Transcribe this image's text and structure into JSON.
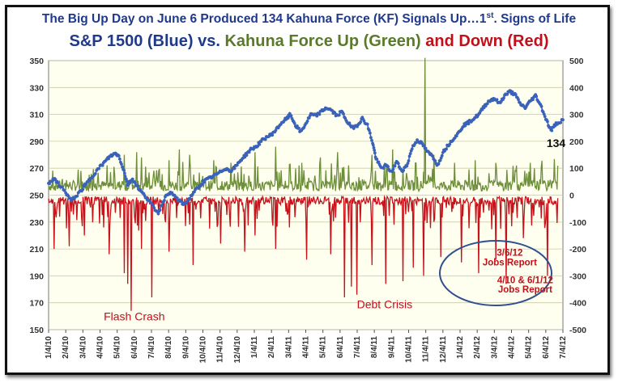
{
  "header": {
    "title_main": "The Big Up Day on June 6 Produced 134 Kahuna Force (KF) Signals Up…1",
    "title_sup": "st",
    "title_tail": ". Signs of Life",
    "subtitle_blue": "S&P 1500 (Blue) vs.",
    "subtitle_green": "Kahuna Force Up (Green)",
    "subtitle_red": "and Down (Red)"
  },
  "colors": {
    "blue": "#3a62b8",
    "green": "#6e8f3a",
    "red": "#c8121c",
    "title_blue": "#1f3a8a",
    "plot_bg": "#fffff0",
    "grid": "#c9c9a8"
  },
  "chart_data": {
    "type": "line",
    "x_ticks": [
      "1/4/10",
      "2/4/10",
      "3/4/10",
      "4/4/10",
      "5/4/10",
      "6/4/10",
      "7/4/10",
      "8/4/10",
      "9/4/10",
      "10/4/10",
      "11/4/10",
      "12/4/10",
      "1/4/11",
      "2/4/11",
      "3/4/11",
      "4/4/11",
      "5/4/11",
      "6/4/11",
      "7/4/11",
      "8/4/11",
      "9/4/11",
      "10/4/11",
      "11/4/11",
      "12/4/11",
      "1/4/12",
      "2/4/12",
      "3/4/12",
      "4/4/12",
      "5/4/12",
      "6/4/12",
      "7/4/12"
    ],
    "y_left": {
      "ticks": [
        150,
        170,
        190,
        210,
        230,
        250,
        270,
        290,
        310,
        330,
        350
      ],
      "range": [
        150,
        350
      ]
    },
    "y_right": {
      "ticks": [
        -500,
        -400,
        -300,
        -200,
        -100,
        0,
        100,
        200,
        300,
        400,
        500
      ],
      "range": [
        -500,
        500
      ]
    },
    "grid": "horizontal",
    "series": [
      {
        "name": "S&P 1500 (Blue)",
        "axis": "left",
        "points": [
          [
            0,
            259
          ],
          [
            0.3,
            262
          ],
          [
            0.6,
            258
          ],
          [
            1.0,
            252
          ],
          [
            1.3,
            246
          ],
          [
            1.6,
            249
          ],
          [
            2.0,
            255
          ],
          [
            2.3,
            260
          ],
          [
            2.6,
            265
          ],
          [
            3.0,
            271
          ],
          [
            3.3,
            275
          ],
          [
            3.6,
            279
          ],
          [
            3.9,
            281
          ],
          [
            4.1,
            279
          ],
          [
            4.4,
            268
          ],
          [
            4.6,
            258
          ],
          [
            4.9,
            262
          ],
          [
            5.2,
            256
          ],
          [
            5.5,
            251
          ],
          [
            5.8,
            247
          ],
          [
            6.1,
            241
          ],
          [
            6.4,
            237
          ],
          [
            6.7,
            246
          ],
          [
            7.0,
            252
          ],
          [
            7.3,
            250
          ],
          [
            7.6,
            246
          ],
          [
            7.9,
            243
          ],
          [
            8.2,
            247
          ],
          [
            8.5,
            253
          ],
          [
            8.8,
            256
          ],
          [
            9.0,
            260
          ],
          [
            9.3,
            262
          ],
          [
            9.6,
            264
          ],
          [
            10.0,
            267
          ],
          [
            10.3,
            270
          ],
          [
            10.6,
            268
          ],
          [
            10.9,
            271
          ],
          [
            11.2,
            276
          ],
          [
            11.5,
            280
          ],
          [
            11.8,
            284
          ],
          [
            12.1,
            286
          ],
          [
            12.4,
            290
          ],
          [
            12.7,
            293
          ],
          [
            13.0,
            295
          ],
          [
            13.3,
            299
          ],
          [
            13.6,
            304
          ],
          [
            13.9,
            307
          ],
          [
            14.1,
            310
          ],
          [
            14.4,
            302
          ],
          [
            14.7,
            297
          ],
          [
            15.0,
            303
          ],
          [
            15.3,
            310
          ],
          [
            15.6,
            309
          ],
          [
            15.9,
            312
          ],
          [
            16.2,
            315
          ],
          [
            16.5,
            313
          ],
          [
            16.8,
            309
          ],
          [
            17.1,
            312
          ],
          [
            17.4,
            305
          ],
          [
            17.7,
            300
          ],
          [
            18.0,
            302
          ],
          [
            18.3,
            307
          ],
          [
            18.6,
            302
          ],
          [
            18.9,
            289
          ],
          [
            19.1,
            277
          ],
          [
            19.4,
            270
          ],
          [
            19.7,
            272
          ],
          [
            20.0,
            267
          ],
          [
            20.3,
            275
          ],
          [
            20.6,
            268
          ],
          [
            20.9,
            272
          ],
          [
            21.2,
            285
          ],
          [
            21.5,
            291
          ],
          [
            21.8,
            288
          ],
          [
            22.1,
            282
          ],
          [
            22.4,
            279
          ],
          [
            22.7,
            272
          ],
          [
            23.0,
            282
          ],
          [
            23.3,
            287
          ],
          [
            23.6,
            292
          ],
          [
            23.9,
            296
          ],
          [
            24.2,
            302
          ],
          [
            24.5,
            304
          ],
          [
            24.8,
            307
          ],
          [
            25.1,
            310
          ],
          [
            25.4,
            316
          ],
          [
            25.7,
            320
          ],
          [
            26.0,
            322
          ],
          [
            26.3,
            318
          ],
          [
            26.6,
            324
          ],
          [
            26.9,
            327
          ],
          [
            27.2,
            325
          ],
          [
            27.5,
            318
          ],
          [
            27.8,
            315
          ],
          [
            28.1,
            320
          ],
          [
            28.4,
            324
          ],
          [
            28.7,
            317
          ],
          [
            29.0,
            307
          ],
          [
            29.3,
            298
          ],
          [
            29.6,
            303
          ],
          [
            30.0,
            306
          ]
        ]
      },
      {
        "name": "Kahuna Force Up (Green)",
        "axis": "right"
      },
      {
        "name": "Kahuna Force Down (Red)",
        "axis": "right"
      }
    ],
    "annotations": [
      {
        "text": "134",
        "x": 29.6,
        "y": 178,
        "axis": "right"
      },
      {
        "text": "Flash Crash",
        "x": 5.0,
        "y": -465,
        "axis": "right"
      },
      {
        "text": "Debt Crisis",
        "x": 19.6,
        "y": -420,
        "axis": "right"
      },
      {
        "text": "3/6/12",
        "x": 26.9,
        "y": -225,
        "axis": "right"
      },
      {
        "text": "Jobs Report",
        "x": 26.9,
        "y": -262,
        "axis": "right"
      },
      {
        "text": "4/10 & 6/1/12",
        "x": 27.8,
        "y": -327,
        "axis": "right"
      },
      {
        "text": "Jobs Report",
        "x": 27.8,
        "y": -362,
        "axis": "right"
      }
    ]
  }
}
